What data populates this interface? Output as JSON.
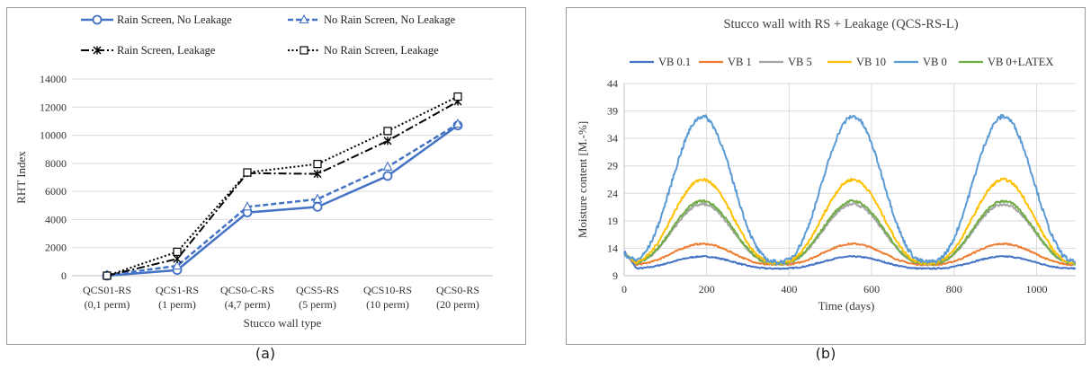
{
  "captions": [
    "(a)",
    "(b)"
  ],
  "chart_data": [
    {
      "type": "line",
      "title": "",
      "xlabel": "Stucco wall type",
      "ylabel": "RHT Index",
      "categories": [
        [
          "QCS01-RS",
          "(0,1 perm)"
        ],
        [
          "QCS1-RS",
          "(1 perm)"
        ],
        [
          "QCS0-C-RS",
          "(4,7 perm)"
        ],
        [
          "QCS5-RS",
          "(5 perm)"
        ],
        [
          "QCS10-RS",
          "(10 perm)"
        ],
        [
          "QCS0-RS",
          "(20 perm)"
        ]
      ],
      "ylim": [
        0,
        14000
      ],
      "yticks": [
        "0",
        "2000",
        "4000",
        "6000",
        "8000",
        "10000",
        "12000",
        "14000"
      ],
      "grid": true,
      "legend_position": "top",
      "series": [
        {
          "name": "Rain Screen, No Leakage",
          "values": [
            0,
            400,
            4500,
            4900,
            7100,
            10700
          ],
          "color": "#4472c4",
          "dash": "solid",
          "marker": "circle"
        },
        {
          "name": "No Rain Screen, No Leakage",
          "values": [
            50,
            700,
            4900,
            5450,
            7750,
            10800
          ],
          "color": "#4472c4",
          "dash": "dashed",
          "marker": "triangle"
        },
        {
          "name": "Rain Screen, Leakage",
          "values": [
            0,
            1200,
            7300,
            7250,
            9600,
            12400
          ],
          "color": "#000000",
          "dash": "dashdot",
          "marker": "x"
        },
        {
          "name": "No Rain Screen, Leakage",
          "values": [
            0,
            1700,
            7350,
            7950,
            10300,
            12750
          ],
          "color": "#000000",
          "dash": "dotted",
          "marker": "square"
        }
      ]
    },
    {
      "type": "line",
      "title": "Stucco wall with RS + Leakage (QCS-RS-L)",
      "xlabel": "Time (days)",
      "ylabel": "Moisture content [M.-%]",
      "xlim": [
        0,
        1095
      ],
      "ylim": [
        9,
        44
      ],
      "xticks": [
        0,
        200,
        400,
        600,
        800,
        1000
      ],
      "yticks": [
        9,
        14,
        19,
        24,
        29,
        34,
        39,
        44
      ],
      "grid": true,
      "legend_position": "top",
      "cycle_period_days": 365,
      "first_peak_day": 190,
      "series": [
        {
          "name": "VB 0.1",
          "color": "#4472c4",
          "base": 10.3,
          "peak": 12.5,
          "start": 13.5
        },
        {
          "name": "VB 1",
          "color": "#ed7d31",
          "base": 11.0,
          "peak": 14.8,
          "start": 13.0
        },
        {
          "name": "VB 5",
          "color": "#a5a5a5",
          "base": 11.2,
          "peak": 22.0,
          "start": 13.0
        },
        {
          "name": "VB 10",
          "color": "#ffc000",
          "base": 11.3,
          "peak": 26.5,
          "start": 13.0
        },
        {
          "name": "VB 0",
          "color": "#5b9bd5",
          "base": 11.5,
          "peak": 38.0,
          "start": 13.0
        },
        {
          "name": "VB 0+LATEX",
          "color": "#70ad47",
          "base": 11.2,
          "peak": 22.6,
          "start": 13.0
        }
      ]
    }
  ]
}
